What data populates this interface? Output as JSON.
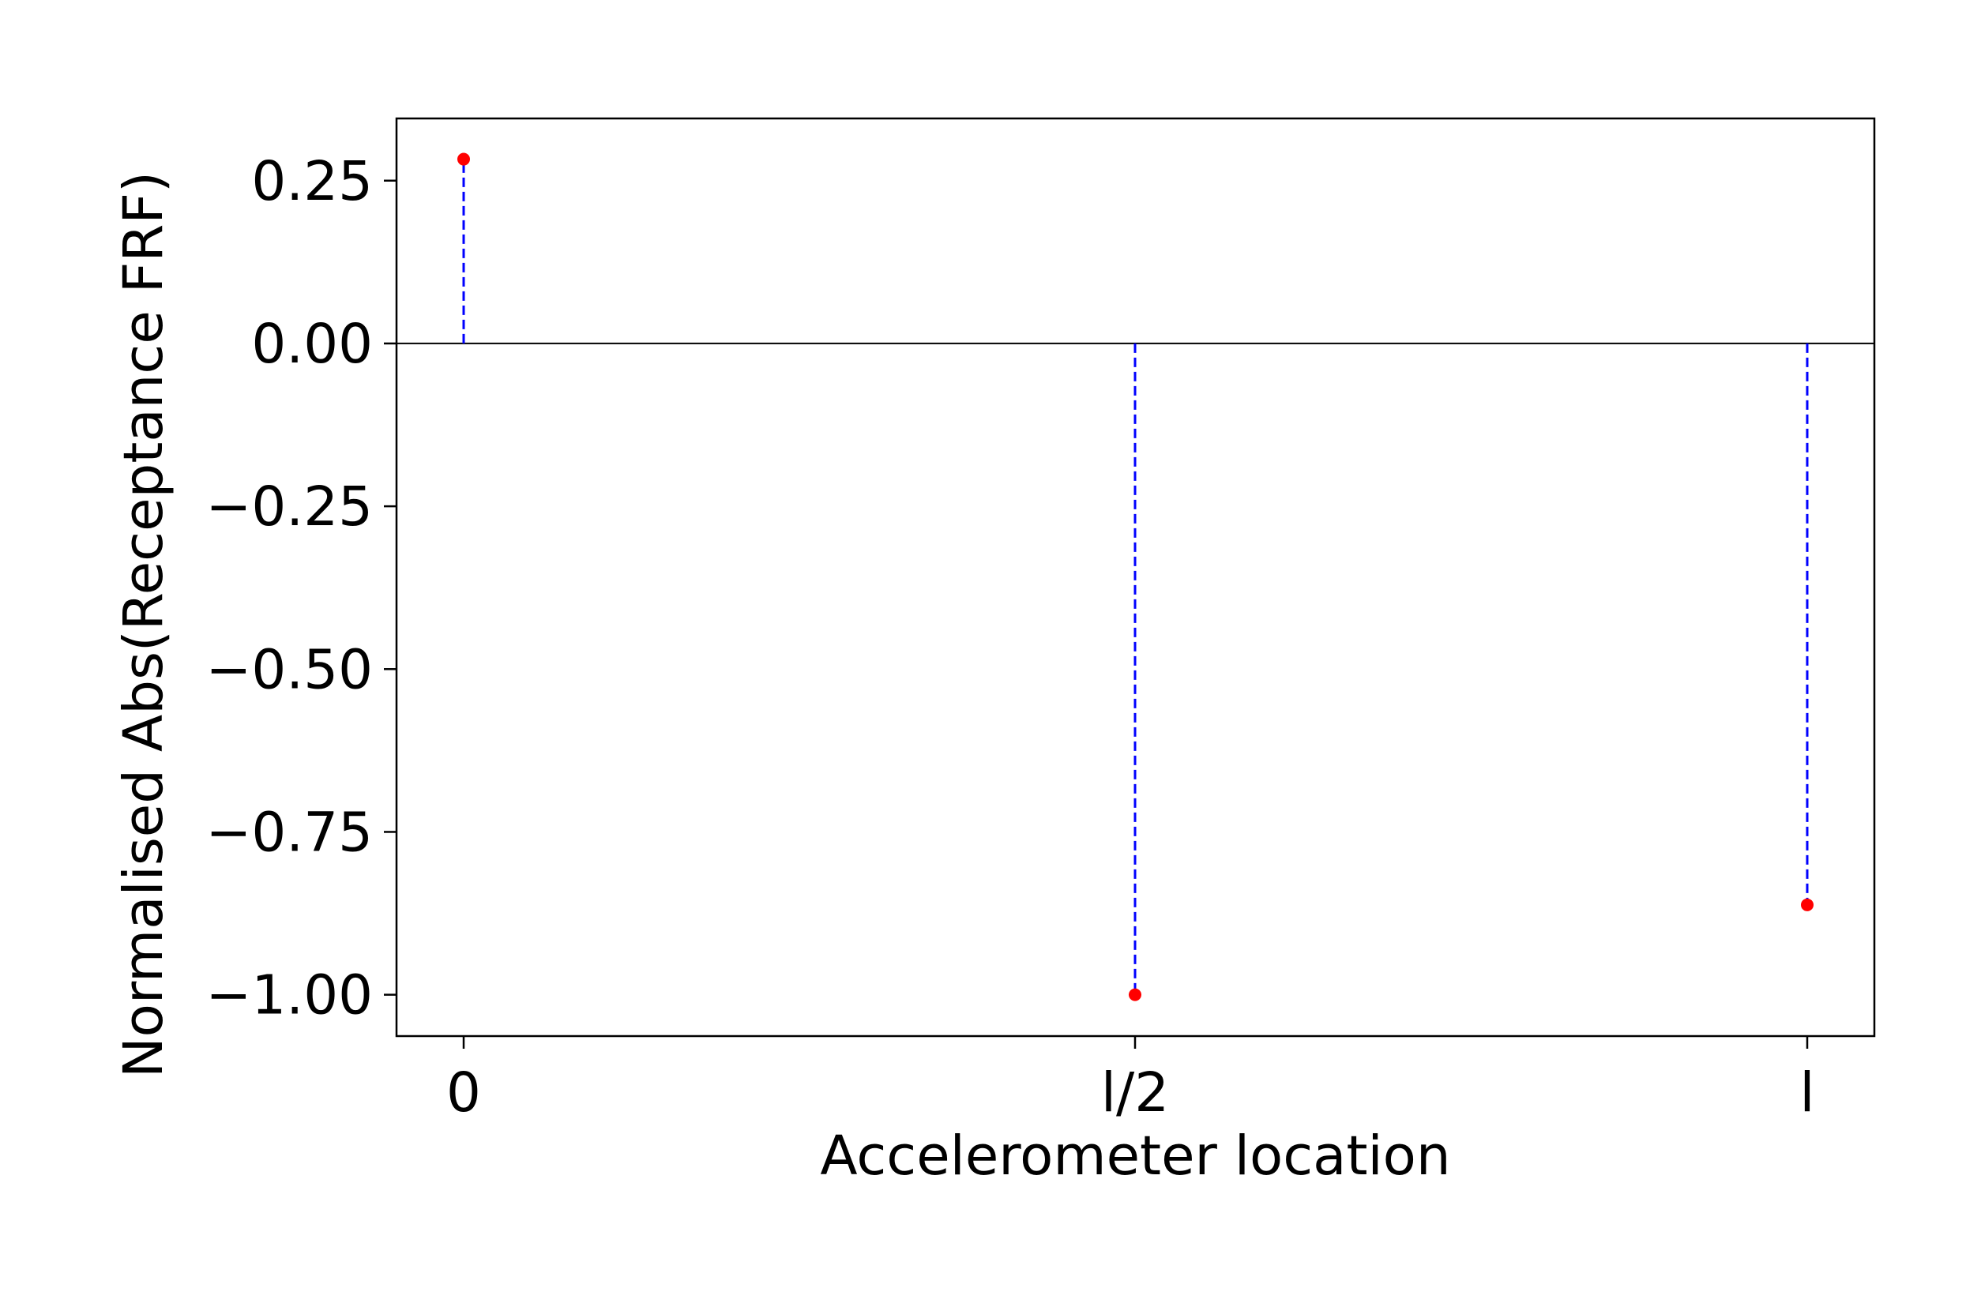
{
  "chart_data": {
    "type": "stem",
    "title": "",
    "xlabel": "Accelerometer location",
    "ylabel": "Normalised Abs(Receptance FRF)",
    "categories": [
      "0",
      "l/2",
      "l"
    ],
    "values": [
      0.283,
      -1.0,
      -0.862
    ],
    "ylim": [
      -1.0635,
      0.3455
    ],
    "yticks": [
      0.25,
      0.0,
      -0.25,
      -0.5,
      -0.75,
      -1.0
    ],
    "ytick_labels": [
      "0.25",
      "0.00",
      "−0.25",
      "−0.50",
      "−0.75",
      "−1.00"
    ],
    "baseline": 0,
    "grid": false,
    "legend": "none",
    "colors": {
      "marker": "#ff0000",
      "stem": "#0000ff",
      "baseline": "#000000",
      "axes": "#000000"
    }
  }
}
